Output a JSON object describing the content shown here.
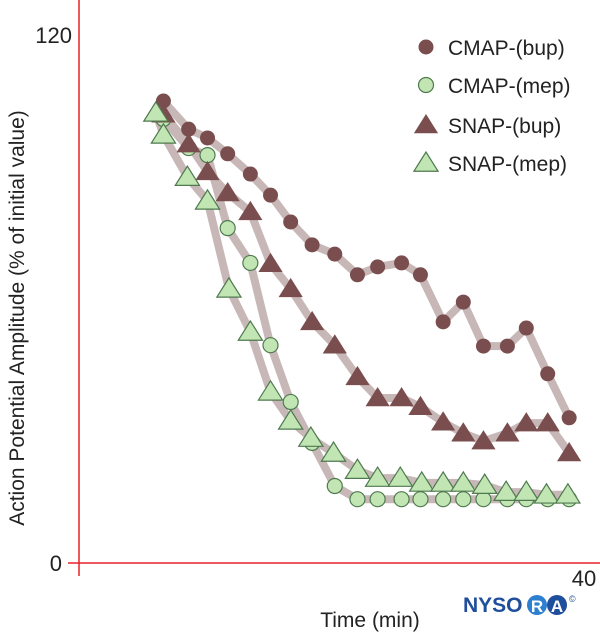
{
  "chart_data": {
    "type": "line",
    "title": "",
    "xlabel": "Time (min)",
    "ylabel": "Action Potential Amplitude (% of initial value)",
    "xlim": [
      0,
      40
    ],
    "ylim": [
      0,
      120
    ],
    "x_tick_labels": [
      "40"
    ],
    "y_tick_labels": [
      "0",
      "120"
    ],
    "grid": false,
    "legend_placement": "top-right",
    "colors": {
      "axis": "#e8202a",
      "bup": "#7a4e4e",
      "mep_fill": "#c2e5b4",
      "mep_stroke": "#4f7a4f",
      "line": "#c8b7b7"
    },
    "series": [
      {
        "name": "CMAP-(bup)",
        "marker": "circle-filled",
        "x": [
          6.7,
          8.7,
          10.2,
          11.8,
          13.6,
          15.2,
          16.8,
          18.5,
          20.3,
          22.1,
          23.7,
          25.6,
          27.1,
          28.9,
          30.5,
          32.1,
          34.0,
          35.5,
          37.2,
          38.9
        ],
        "y": [
          105,
          98.6,
          96.6,
          93,
          88.4,
          83.6,
          77.5,
          72.3,
          70.2,
          65.5,
          67.3,
          68.2,
          65.5,
          54.8,
          59.3,
          49.3,
          49.3,
          53.4,
          43,
          33
        ]
      },
      {
        "name": "CMAP-(mep)",
        "marker": "circle-open",
        "x": [
          6.7,
          8.7,
          10.2,
          11.8,
          13.6,
          15.2,
          16.8,
          18.5,
          20.3,
          22.1,
          23.7,
          25.6,
          27.1,
          28.9,
          30.5,
          32.1,
          34.0,
          35.5,
          37.2,
          38.9
        ],
        "y": [
          100.9,
          94.3,
          92.7,
          76.1,
          68.2,
          49.5,
          36.6,
          27.3,
          17.5,
          14.5,
          14.5,
          14.5,
          14.5,
          14.5,
          14.5,
          14.5,
          14.5,
          14.5,
          14.5,
          14.5
        ]
      },
      {
        "name": "SNAP-(bup)",
        "marker": "triangle-filled",
        "x": [
          6.7,
          8.7,
          10.2,
          11.8,
          13.6,
          15.2,
          16.8,
          18.5,
          20.3,
          22.1,
          23.7,
          25.6,
          27.1,
          28.9,
          30.5,
          32.1,
          34.0,
          35.5,
          37.2,
          38.9
        ],
        "y": [
          102,
          95.2,
          88.9,
          84.1,
          79.8,
          68,
          62.3,
          54.8,
          49.5,
          42.3,
          37.5,
          37.5,
          35.5,
          32,
          29.5,
          27.7,
          29.5,
          31.8,
          31.8,
          25
        ]
      },
      {
        "name": "SNAP-(mep)",
        "marker": "triangle-open",
        "x": [
          6.1,
          6.7,
          8.6,
          10.2,
          11.9,
          13.6,
          15.2,
          16.8,
          18.4,
          20.2,
          22.1,
          23.7,
          25.5,
          27.2,
          28.9,
          30.5,
          32.2,
          33.9,
          35.5,
          37.1,
          38.8
        ],
        "y": [
          102.3,
          97.3,
          87.7,
          82.3,
          62.3,
          52.5,
          38.9,
          32.3,
          28.4,
          25,
          21.1,
          19.3,
          19.3,
          18.2,
          18.2,
          18.2,
          17.7,
          16.1,
          16.1,
          15.5,
          15.5
        ]
      }
    ]
  },
  "logo": {
    "text": "NYSORA",
    "mark": "©"
  }
}
